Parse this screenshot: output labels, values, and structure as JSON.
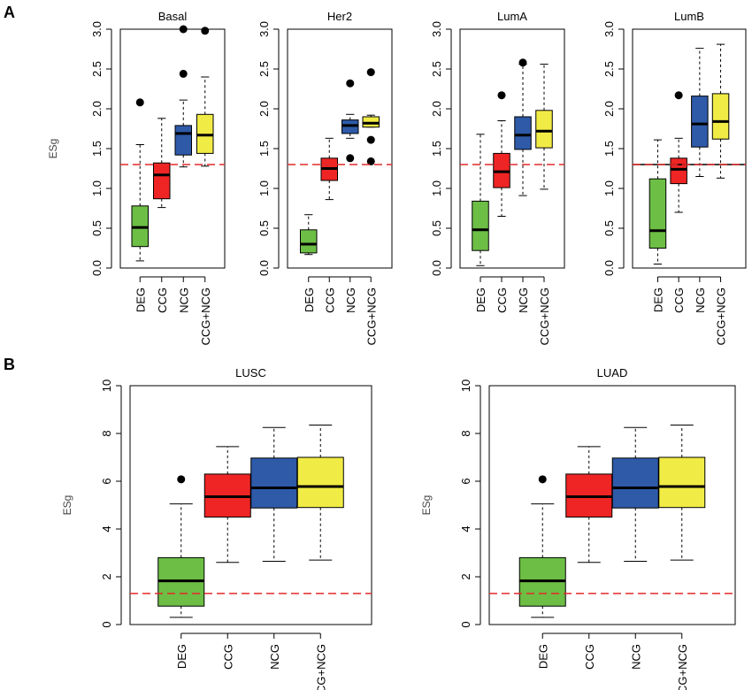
{
  "panels": {
    "A": "A",
    "B": "B"
  },
  "colors": {
    "DEG": "#6cbe45",
    "CCG": "#ee2524",
    "NCG": "#2e5aa8",
    "CCG+NCG": "#f1ec45",
    "threshold": "#e32a2a"
  },
  "chart_data": [
    {
      "type": "box",
      "title": "Basal",
      "ylabel": "ESg",
      "ylim": [
        0,
        3
      ],
      "yticks": [
        0.0,
        0.5,
        1.0,
        1.5,
        2.0,
        2.5,
        3.0
      ],
      "ytick_labels": [
        "0.0",
        "0.5",
        "1.0",
        "1.5",
        "2.0",
        "2.5",
        "3.0"
      ],
      "categories": [
        "DEG",
        "CCG",
        "NCG",
        "CCG+NCG"
      ],
      "threshold": 1.3,
      "boxes": [
        {
          "min": 0.09,
          "q1": 0.27,
          "median": 0.51,
          "q3": 0.78,
          "max": 1.55,
          "outliers": [
            2.08
          ]
        },
        {
          "min": 0.76,
          "q1": 0.87,
          "median": 1.17,
          "q3": 1.32,
          "max": 1.88,
          "outliers": []
        },
        {
          "min": 1.27,
          "q1": 1.42,
          "median": 1.69,
          "q3": 1.79,
          "max": 2.11,
          "outliers": [
            2.44,
            3.0
          ]
        },
        {
          "min": 1.28,
          "q1": 1.44,
          "median": 1.67,
          "q3": 1.93,
          "max": 2.4,
          "outliers": [
            2.98
          ]
        }
      ]
    },
    {
      "type": "box",
      "title": "Her2",
      "ylim": [
        0,
        3
      ],
      "yticks": [
        0.0,
        0.5,
        1.0,
        1.5,
        2.0,
        2.5,
        3.0
      ],
      "ytick_labels": [
        "0.0",
        "0.5",
        "1.0",
        "1.5",
        "2.0",
        "2.5",
        "3.0"
      ],
      "categories": [
        "DEG",
        "CCG",
        "NCG",
        "CCG+NCG"
      ],
      "threshold": 1.3,
      "boxes": [
        {
          "min": 0.17,
          "q1": 0.19,
          "median": 0.3,
          "q3": 0.48,
          "max": 0.67,
          "outliers": []
        },
        {
          "min": 0.86,
          "q1": 1.1,
          "median": 1.25,
          "q3": 1.38,
          "max": 1.63,
          "outliers": []
        },
        {
          "min": 1.63,
          "q1": 1.69,
          "median": 1.79,
          "q3": 1.86,
          "max": 1.93,
          "outliers": [
            2.32,
            1.38
          ]
        },
        {
          "min": 1.77,
          "q1": 1.77,
          "median": 1.82,
          "q3": 1.9,
          "max": 1.92,
          "outliers": [
            2.46,
            1.61,
            1.34
          ]
        }
      ]
    },
    {
      "type": "box",
      "title": "LumA",
      "ylim": [
        0,
        3
      ],
      "yticks": [
        0.0,
        0.5,
        1.0,
        1.5,
        2.0,
        2.5,
        3.0
      ],
      "ytick_labels": [
        "0.0",
        "0.5",
        "1.0",
        "1.5",
        "2.0",
        "2.5",
        "3.0"
      ],
      "categories": [
        "DEG",
        "CCG",
        "NCG",
        "CCG+NCG"
      ],
      "threshold": 1.3,
      "boxes": [
        {
          "min": 0.03,
          "q1": 0.22,
          "median": 0.48,
          "q3": 0.84,
          "max": 1.68,
          "outliers": []
        },
        {
          "min": 0.65,
          "q1": 1.01,
          "median": 1.21,
          "q3": 1.44,
          "max": 1.85,
          "outliers": [
            2.17
          ]
        },
        {
          "min": 0.91,
          "q1": 1.49,
          "median": 1.67,
          "q3": 1.9,
          "max": 2.56,
          "outliers": [
            2.58
          ]
        },
        {
          "min": 0.99,
          "q1": 1.51,
          "median": 1.72,
          "q3": 1.98,
          "max": 2.56,
          "outliers": []
        }
      ]
    },
    {
      "type": "box",
      "title": "LumB",
      "ylim": [
        0,
        3
      ],
      "yticks": [
        0.0,
        0.5,
        1.0,
        1.5,
        2.0,
        2.5,
        3.0
      ],
      "ytick_labels": [
        "0.0",
        "0.5",
        "1.0",
        "1.5",
        "2.0",
        "2.5",
        "3.0"
      ],
      "categories": [
        "DEG",
        "CCG",
        "NCG",
        "CCG+NCG"
      ],
      "threshold": 1.3,
      "threshold_black": 1.3,
      "boxes": [
        {
          "min": 0.05,
          "q1": 0.25,
          "median": 0.47,
          "q3": 1.12,
          "max": 1.61,
          "outliers": []
        },
        {
          "min": 0.7,
          "q1": 1.06,
          "median": 1.24,
          "q3": 1.38,
          "max": 1.63,
          "outliers": [
            2.17
          ]
        },
        {
          "min": 1.15,
          "q1": 1.52,
          "median": 1.81,
          "q3": 2.16,
          "max": 2.76,
          "outliers": []
        },
        {
          "min": 1.13,
          "q1": 1.62,
          "median": 1.84,
          "q3": 2.19,
          "max": 2.81,
          "outliers": []
        }
      ]
    },
    {
      "type": "box",
      "title": "LUSC",
      "ylabel": "ESg",
      "ylim": [
        0,
        10
      ],
      "yticks": [
        0,
        2,
        4,
        6,
        8,
        10
      ],
      "ytick_labels": [
        "0",
        "2",
        "4",
        "6",
        "8",
        "10"
      ],
      "categories": [
        "DEG",
        "CCG",
        "NCG",
        "CCG+NCG"
      ],
      "threshold": 1.3,
      "boxes": [
        {
          "min": 0.3,
          "q1": 0.77,
          "median": 1.83,
          "q3": 2.8,
          "max": 5.05,
          "outliers": [
            6.08
          ]
        },
        {
          "min": 2.6,
          "q1": 4.5,
          "median": 5.35,
          "q3": 6.3,
          "max": 7.45,
          "outliers": []
        },
        {
          "min": 2.65,
          "q1": 4.88,
          "median": 5.72,
          "q3": 6.97,
          "max": 8.25,
          "outliers": []
        },
        {
          "min": 2.7,
          "q1": 4.9,
          "median": 5.78,
          "q3": 7.0,
          "max": 8.35,
          "outliers": []
        }
      ]
    },
    {
      "type": "box",
      "title": "LUAD",
      "ylabel": "ESg",
      "ylim": [
        0,
        10
      ],
      "yticks": [
        0,
        2,
        4,
        6,
        8,
        10
      ],
      "ytick_labels": [
        "0",
        "2",
        "4",
        "6",
        "8",
        "10"
      ],
      "categories": [
        "DEG",
        "CCG",
        "NCG",
        "CCG+NCG"
      ],
      "threshold": 1.3,
      "boxes": [
        {
          "min": 0.3,
          "q1": 0.77,
          "median": 1.83,
          "q3": 2.8,
          "max": 5.05,
          "outliers": [
            6.08
          ]
        },
        {
          "min": 2.6,
          "q1": 4.5,
          "median": 5.35,
          "q3": 6.3,
          "max": 7.45,
          "outliers": []
        },
        {
          "min": 2.65,
          "q1": 4.88,
          "median": 5.72,
          "q3": 6.97,
          "max": 8.25,
          "outliers": []
        },
        {
          "min": 2.7,
          "q1": 4.9,
          "median": 5.78,
          "q3": 7.0,
          "max": 8.35,
          "outliers": []
        }
      ]
    }
  ]
}
